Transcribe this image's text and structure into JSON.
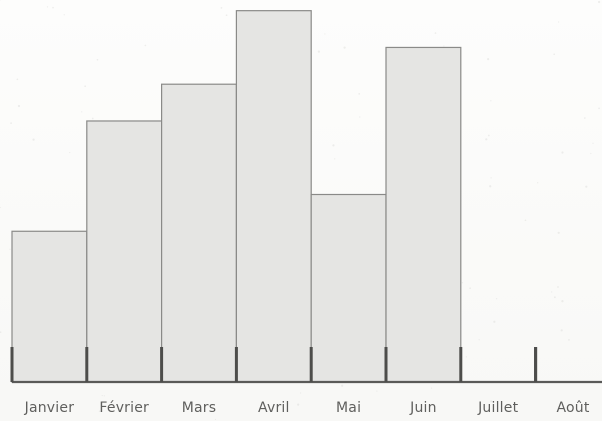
{
  "chart_data": {
    "type": "bar",
    "categories": [
      "Janvier",
      "Février",
      "Mars",
      "Avril",
      "Mai",
      "Juin",
      "Juillet",
      "Août"
    ],
    "values": [
      4.1,
      7.1,
      8.1,
      10.1,
      5.1,
      9.1,
      0,
      0
    ],
    "title": "",
    "xlabel": "",
    "ylabel": "",
    "ylim": [
      0,
      10.2
    ],
    "grid": false,
    "legend": "none",
    "colors": {
      "bar_fill": "#e5e5e3",
      "bar_stroke": "#8a8a88",
      "axis": "#5a5a58",
      "text": "#5f5f5d"
    }
  }
}
